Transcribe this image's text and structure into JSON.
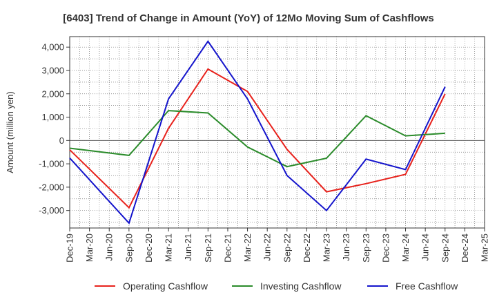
{
  "chart_data": {
    "type": "line",
    "title": "[6403]  Trend of Change in Amount (YoY) of 12Mo Moving Sum of Cashflows",
    "xlabel": "",
    "ylabel": "Amount (million yen)",
    "ylim": [
      -3750,
      4450
    ],
    "yticks": [
      4000,
      3000,
      2000,
      1000,
      0,
      -1000,
      -2000,
      -3000
    ],
    "ytick_labels": [
      "4,000",
      "3,000",
      "2,000",
      "1,000",
      "0",
      "-1,000",
      "-2,000",
      "-3,000"
    ],
    "grid": true,
    "legend_position": "bottom",
    "categories": [
      "Dec-19",
      "Mar-20",
      "Jun-20",
      "Sep-20",
      "Dec-20",
      "Mar-21",
      "Jun-21",
      "Sep-21",
      "Dec-21",
      "Mar-22",
      "Jun-22",
      "Sep-22",
      "Dec-22",
      "Mar-23",
      "Jun-23",
      "Sep-23",
      "Dec-23",
      "Mar-24",
      "Jun-24",
      "Sep-24",
      "Dec-24",
      "Mar-25"
    ],
    "series": [
      {
        "name": "Operating Cashflow",
        "color": "#e8221c",
        "points": [
          {
            "x": 0,
            "y": -400
          },
          {
            "x": 3,
            "y": -2880
          },
          {
            "x": 5,
            "y": 520
          },
          {
            "x": 7,
            "y": 3060
          },
          {
            "x": 9,
            "y": 2100
          },
          {
            "x": 11,
            "y": -380
          },
          {
            "x": 13,
            "y": -2200
          },
          {
            "x": 15,
            "y": -1850
          },
          {
            "x": 17,
            "y": -1450
          },
          {
            "x": 19,
            "y": 2000
          }
        ]
      },
      {
        "name": "Investing Cashflow",
        "color": "#2a8b2a",
        "points": [
          {
            "x": 0,
            "y": -330
          },
          {
            "x": 3,
            "y": -640
          },
          {
            "x": 5,
            "y": 1280
          },
          {
            "x": 7,
            "y": 1180
          },
          {
            "x": 9,
            "y": -280
          },
          {
            "x": 11,
            "y": -1120
          },
          {
            "x": 13,
            "y": -760
          },
          {
            "x": 15,
            "y": 1060
          },
          {
            "x": 17,
            "y": 200
          },
          {
            "x": 19,
            "y": 310
          }
        ]
      },
      {
        "name": "Free Cashflow",
        "color": "#1414cc",
        "points": [
          {
            "x": 0,
            "y": -750
          },
          {
            "x": 3,
            "y": -3540
          },
          {
            "x": 5,
            "y": 1780
          },
          {
            "x": 7,
            "y": 4250
          },
          {
            "x": 9,
            "y": 1780
          },
          {
            "x": 11,
            "y": -1500
          },
          {
            "x": 13,
            "y": -3000
          },
          {
            "x": 15,
            "y": -800
          },
          {
            "x": 17,
            "y": -1250
          },
          {
            "x": 19,
            "y": 2300
          }
        ]
      }
    ]
  }
}
